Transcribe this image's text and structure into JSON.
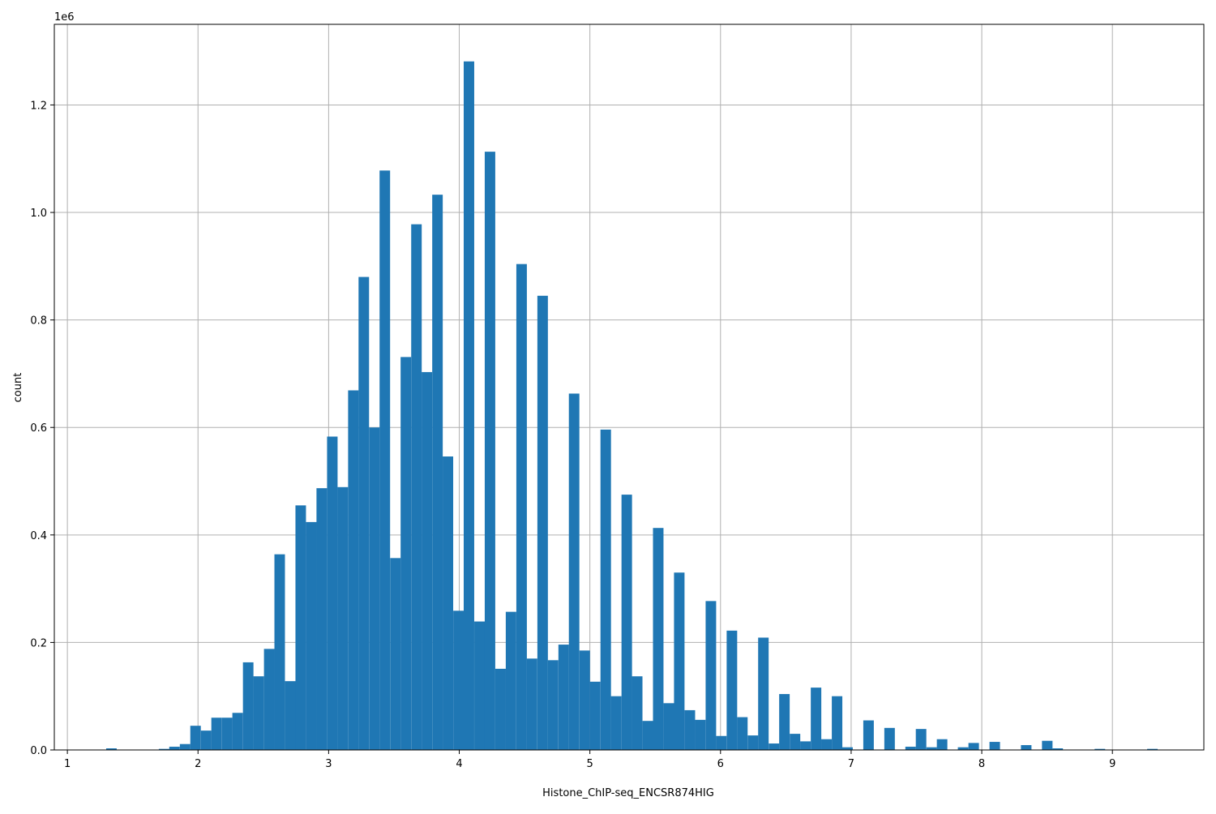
{
  "chart_data": {
    "type": "bar",
    "xlabel": "Histone_ChIP-seq_ENCSR874HIG",
    "ylabel": "count",
    "y_offset_label": "1e6",
    "xlim": [
      0.9,
      9.7
    ],
    "ylim": [
      0,
      1350000
    ],
    "grid": true,
    "bin_width": 0.0805,
    "x_ticks": [
      1,
      2,
      3,
      4,
      5,
      6,
      7,
      8,
      9
    ],
    "x_tick_labels": [
      "1",
      "2",
      "3",
      "4",
      "5",
      "6",
      "7",
      "8",
      "9"
    ],
    "y_ticks": [
      0,
      200000,
      400000,
      600000,
      800000,
      1000000,
      1200000
    ],
    "y_tick_labels": [
      "0.0",
      "0.2",
      "0.4",
      "0.6",
      "0.8",
      "1.0",
      "1.2"
    ],
    "bar_color": "#1f77b4",
    "bin_starts": [
      1.297,
      1.7,
      1.78,
      1.861,
      1.941,
      2.022,
      2.102,
      2.183,
      2.263,
      2.344,
      2.424,
      2.505,
      2.585,
      2.666,
      2.746,
      2.827,
      2.907,
      2.988,
      3.068,
      3.149,
      3.229,
      3.31,
      3.39,
      3.471,
      3.551,
      3.632,
      3.712,
      3.793,
      3.873,
      3.954,
      4.034,
      4.115,
      4.195,
      4.276,
      4.356,
      4.437,
      4.517,
      4.598,
      4.678,
      4.759,
      4.839,
      4.92,
      5.0,
      5.081,
      5.161,
      5.242,
      5.322,
      5.403,
      5.483,
      5.564,
      5.644,
      5.725,
      5.805,
      5.886,
      5.966,
      6.047,
      6.127,
      6.208,
      6.288,
      6.369,
      6.449,
      6.53,
      6.61,
      6.691,
      6.771,
      6.852,
      6.932,
      7.093,
      7.254,
      7.415,
      7.495,
      7.576,
      7.656,
      7.817,
      7.898,
      8.059,
      8.3,
      8.461,
      8.541,
      8.864,
      9.266
    ],
    "values": [
      3000,
      2000,
      6000,
      11000,
      45000,
      36000,
      60000,
      60000,
      69000,
      163000,
      137000,
      188000,
      364000,
      128000,
      455000,
      424000,
      487000,
      583000,
      489000,
      669000,
      880000,
      600000,
      1078000,
      357000,
      731000,
      978000,
      703000,
      1033000,
      546000,
      259000,
      1281000,
      239000,
      1113000,
      151000,
      257000,
      904000,
      170000,
      845000,
      167000,
      196000,
      663000,
      185000,
      127000,
      596000,
      100000,
      475000,
      137000,
      54000,
      413000,
      87000,
      330000,
      74000,
      56000,
      277000,
      26000,
      222000,
      61000,
      27000,
      209000,
      12000,
      104000,
      30000,
      16000,
      116000,
      20000,
      100000,
      5000,
      55000,
      41000,
      6000,
      39000,
      5000,
      20000,
      5000,
      13000,
      15000,
      9000,
      17000,
      3000,
      2000,
      2000
    ]
  }
}
